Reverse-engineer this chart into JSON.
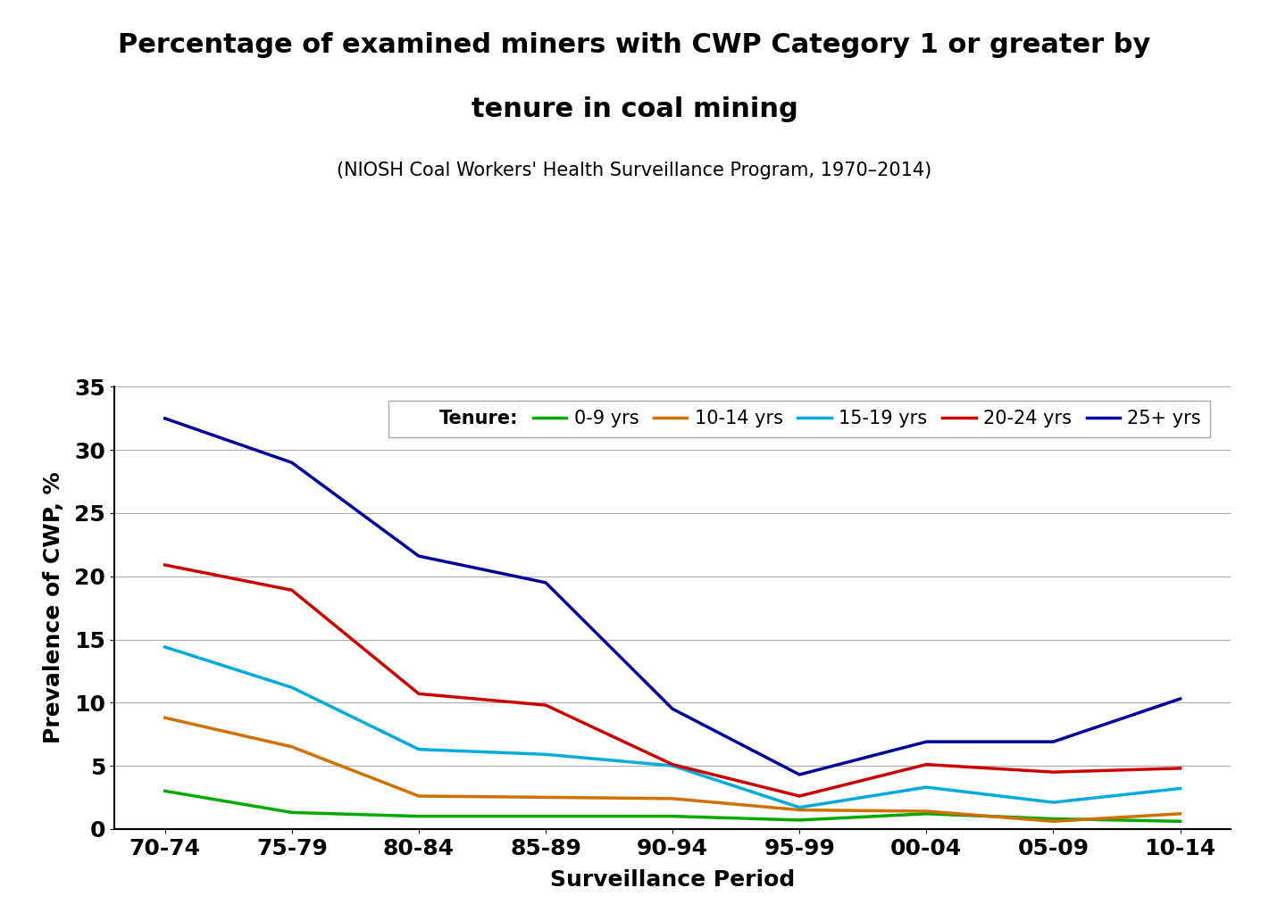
{
  "title_line1": "Percentage of examined miners with CWP Category 1 or greater by",
  "title_line2": "tenure in coal mining",
  "subtitle": "(NIOSH Coal Workers' Health Surveillance Program, 1970–2014)",
  "xlabel": "Surveillance Period",
  "ylabel": "Prevalence of CWP, %",
  "x_labels": [
    "70-74",
    "75-79",
    "80-84",
    "85-89",
    "90-94",
    "95-99",
    "00-04",
    "05-09",
    "10-14"
  ],
  "series": {
    "0-9 yrs": {
      "color": "#00AA00",
      "values": [
        3.0,
        1.3,
        1.0,
        1.0,
        1.0,
        0.7,
        1.2,
        0.8,
        0.6
      ]
    },
    "10-14 yrs": {
      "color": "#D07000",
      "values": [
        8.8,
        6.5,
        2.6,
        2.5,
        2.4,
        1.5,
        1.4,
        0.6,
        1.2
      ]
    },
    "15-19 yrs": {
      "color": "#00AADD",
      "values": [
        14.4,
        11.2,
        6.3,
        5.9,
        5.0,
        1.7,
        3.3,
        2.1,
        3.2
      ]
    },
    "20-24 yrs": {
      "color": "#CC0000",
      "values": [
        20.9,
        18.9,
        10.7,
        9.8,
        5.1,
        2.6,
        5.1,
        4.5,
        4.8
      ]
    },
    "25+ yrs": {
      "color": "#000099",
      "values": [
        32.5,
        29.0,
        21.6,
        19.5,
        9.5,
        4.3,
        6.9,
        6.9,
        10.3
      ]
    }
  },
  "ylim": [
    0,
    35
  ],
  "yticks": [
    0,
    5,
    10,
    15,
    20,
    25,
    30,
    35
  ],
  "title_fontsize": 22,
  "subtitle_fontsize": 15,
  "axis_label_fontsize": 18,
  "tick_fontsize": 18,
  "legend_fontsize": 15,
  "line_width": 2.5,
  "background_color": "#ffffff"
}
